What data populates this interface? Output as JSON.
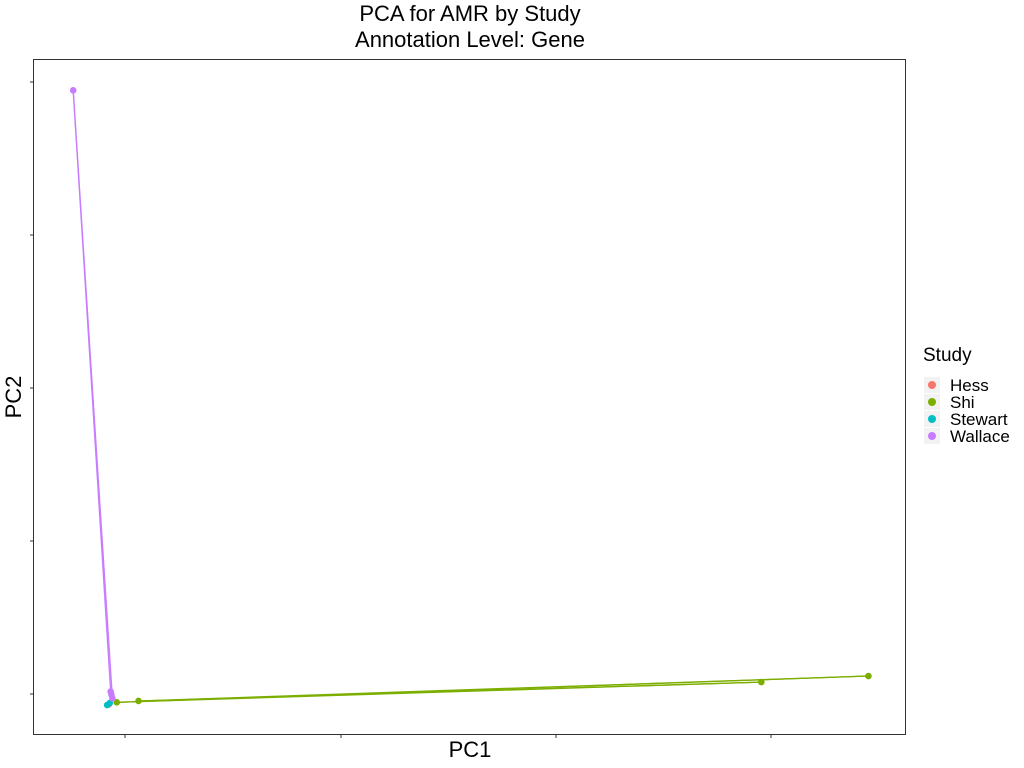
{
  "chart_data": {
    "type": "scatter",
    "title": "PCA for AMR by Study",
    "subtitle": "Annotation Level: Gene",
    "xlabel": "PC1",
    "ylabel": "PC2",
    "xlim": [
      0,
      100
    ],
    "ylim": [
      0,
      100
    ],
    "grid": false,
    "tick_labels_visible": false,
    "legend": {
      "title": "Study",
      "position": "right"
    },
    "series": [
      {
        "name": "Hess",
        "color": "#F8766D",
        "points": [
          [
            8.6,
            4.4
          ]
        ],
        "lines": []
      },
      {
        "name": "Shi",
        "color": "#7CAE00",
        "points": [
          [
            9.5,
            4.7
          ],
          [
            12.0,
            4.9
          ],
          [
            83.5,
            7.7
          ],
          [
            95.8,
            8.6
          ]
        ],
        "lines": [
          [
            [
              9.5,
              4.7
            ],
            [
              95.8,
              8.6
            ]
          ],
          [
            [
              12.0,
              4.9
            ],
            [
              83.5,
              7.7
            ]
          ],
          [
            [
              9.5,
              4.7
            ],
            [
              83.5,
              7.7
            ]
          ],
          [
            [
              12.0,
              4.9
            ],
            [
              95.8,
              8.6
            ]
          ]
        ]
      },
      {
        "name": "Stewart",
        "color": "#00BFC4",
        "points": [
          [
            8.4,
            4.3
          ],
          [
            8.7,
            4.6
          ]
        ],
        "lines": []
      },
      {
        "name": "Wallace",
        "color": "#C77CFF",
        "points": [
          [
            4.5,
            95.5
          ],
          [
            8.8,
            6.3
          ],
          [
            8.9,
            5.8
          ],
          [
            9.0,
            5.3
          ]
        ],
        "lines": [
          [
            [
              4.5,
              95.5
            ],
            [
              8.8,
              6.3
            ]
          ],
          [
            [
              4.5,
              95.5
            ],
            [
              9.0,
              5.3
            ]
          ]
        ]
      }
    ]
  }
}
